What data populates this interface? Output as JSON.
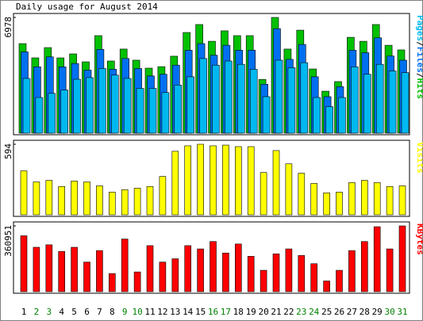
{
  "title": "Daily usage for August 2014",
  "chart_data": [
    {
      "type": "bar",
      "legend_separator": "/",
      "ylim": [
        0,
        6978
      ],
      "yticks": [
        6978
      ],
      "series": [
        {
          "name": "Hits",
          "color": "#00c000",
          "values": [
            5400,
            4540,
            5160,
            4540,
            4780,
            4300,
            5880,
            4350,
            5070,
            4400,
            3920,
            4010,
            4640,
            6070,
            6550,
            5540,
            6170,
            5880,
            5880,
            3240,
            6978,
            5070,
            6210,
            3870,
            2530,
            3110,
            5780,
            5540,
            6550,
            5300,
            5020
          ]
        },
        {
          "name": "Files",
          "color": "#0070f0",
          "values": [
            4900,
            4000,
            4600,
            4000,
            4200,
            3800,
            5050,
            3850,
            4500,
            3900,
            3450,
            3550,
            4100,
            5000,
            5400,
            4700,
            5300,
            5000,
            5000,
            2950,
            6300,
            4450,
            5350,
            3400,
            2200,
            2800,
            5000,
            4850,
            5750,
            4650,
            4400
          ]
        },
        {
          "name": "Pages",
          "color": "#00b8f0",
          "values": [
            3300,
            2150,
            2400,
            2600,
            3250,
            3350,
            3900,
            3500,
            3300,
            2700,
            2700,
            2450,
            2900,
            3400,
            4500,
            4100,
            4350,
            4150,
            3850,
            2200,
            4400,
            3950,
            4250,
            2150,
            1600,
            2150,
            4000,
            3550,
            4150,
            3750,
            3650
          ]
        }
      ]
    },
    {
      "type": "bar",
      "ylim": [
        0,
        594
      ],
      "yticks": [
        594
      ],
      "series": [
        {
          "name": "Visits",
          "color": "#ffff00",
          "values": [
            370,
            277,
            290,
            238,
            284,
            277,
            244,
            191,
            211,
            224,
            238,
            323,
            535,
            581,
            594,
            581,
            587,
            574,
            574,
            356,
            541,
            429,
            350,
            264,
            185,
            191,
            271,
            290,
            271,
            238,
            244
          ]
        }
      ]
    },
    {
      "type": "bar",
      "ylim": [
        0,
        360951
      ],
      "yticks": [
        360951
      ],
      "series": [
        {
          "name": "KBytes",
          "color": "#ff0000",
          "values": [
            306800,
            243600,
            257200,
            221000,
            243600,
            162400,
            225600,
            99300,
            288800,
            108300,
            252700,
            162400,
            180500,
            252700,
            234600,
            275200,
            212100,
            261700,
            194000,
            117300,
            207600,
            234600,
            198500,
            153400,
            58700,
            117300,
            225600,
            275200,
            356400,
            234600,
            360951
          ]
        }
      ],
      "categories": [
        "1",
        "2",
        "3",
        "4",
        "5",
        "6",
        "7",
        "8",
        "9",
        "10",
        "11",
        "12",
        "13",
        "14",
        "15",
        "16",
        "17",
        "18",
        "19",
        "20",
        "21",
        "22",
        "23",
        "24",
        "25",
        "26",
        "27",
        "28",
        "29",
        "30",
        "31"
      ],
      "category_colors": [
        "#000000",
        "#008000",
        "#008000",
        "#000000",
        "#000000",
        "#000000",
        "#000000",
        "#000000",
        "#008000",
        "#008000",
        "#000000",
        "#000000",
        "#000000",
        "#000000",
        "#000000",
        "#008000",
        "#008000",
        "#000000",
        "#000000",
        "#000000",
        "#000000",
        "#000000",
        "#008000",
        "#008000",
        "#000000",
        "#000000",
        "#000000",
        "#000000",
        "#000000",
        "#008000",
        "#008000"
      ]
    }
  ]
}
